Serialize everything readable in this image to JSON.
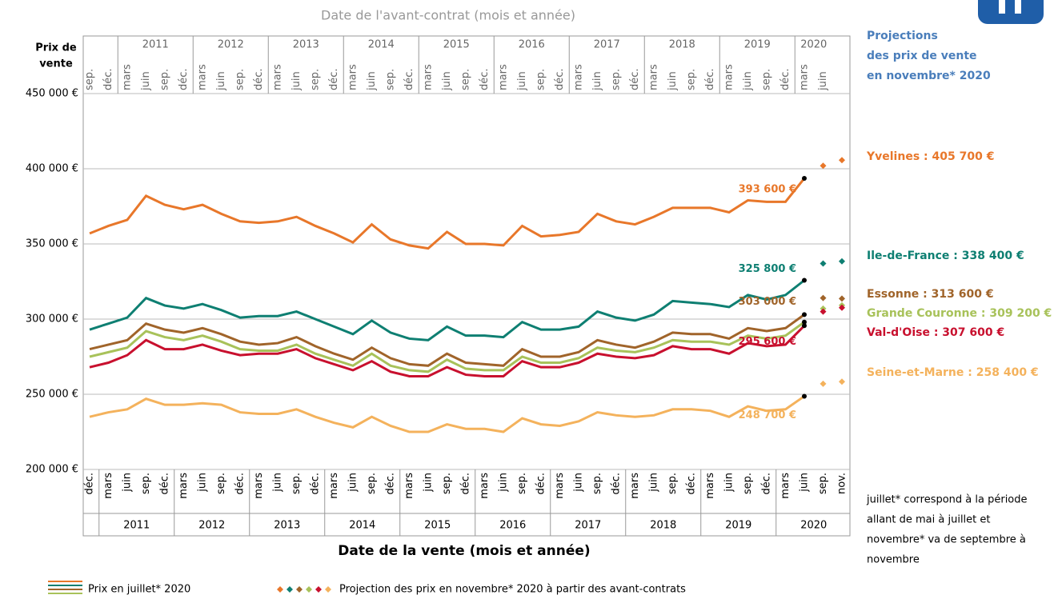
{
  "chart_data": {
    "type": "line",
    "subtitle": "Date de l'avant-contrat (mois et année)",
    "ylabel": [
      "Prix de",
      "vente"
    ],
    "xlabel": "Date de la vente (mois et année)",
    "categories": [
      "déc.",
      "mars",
      "juin",
      "sep.",
      "déc.",
      "mars",
      "juin",
      "sep.",
      "déc.",
      "mars",
      "juin",
      "sep.",
      "déc.",
      "mars",
      "juin",
      "sep.",
      "déc.",
      "mars",
      "juin",
      "sep.",
      "déc.",
      "mars",
      "juin",
      "sep.",
      "déc.",
      "mars",
      "juin",
      "sep.",
      "déc.",
      "mars",
      "juin",
      "sep.",
      "déc.",
      "mars",
      "juin",
      "sep.",
      "déc.",
      "mars",
      "juin",
      "sep.",
      "nov."
    ],
    "years": [
      2011,
      2012,
      2013,
      2014,
      2015,
      2016,
      2017,
      2018,
      2019,
      2020
    ],
    "top_axis": {
      "months": [
        "sep.",
        "déc.",
        "mars",
        "juin",
        "sep.",
        "déc.",
        "mars",
        "juin",
        "sep.",
        "déc.",
        "mars",
        "juin",
        "sep.",
        "déc.",
        "mars",
        "juin",
        "sep.",
        "déc.",
        "mars",
        "juin",
        "sep.",
        "déc.",
        "mars",
        "juin",
        "sep.",
        "déc.",
        "mars",
        "juin",
        "sep.",
        "déc.",
        "mars",
        "juin",
        "sep.",
        "déc.",
        "mars",
        "juin",
        "sep.",
        "déc.",
        "mars",
        "juin"
      ],
      "years": [
        2011,
        2012,
        2013,
        2014,
        2015,
        2016,
        2017,
        2018,
        2019,
        2020
      ]
    },
    "ylim": [
      200000,
      450000
    ],
    "yticks": [
      {
        "value": 200000,
        "label": "200 000 €"
      },
      {
        "value": 250000,
        "label": "250 000 €"
      },
      {
        "value": 300000,
        "label": "300 000 €"
      },
      {
        "value": 350000,
        "label": "350 000 €"
      },
      {
        "value": 400000,
        "label": "400 000 €"
      },
      {
        "value": 450000,
        "label": "450 000 €"
      }
    ],
    "grid": true,
    "projection_title": [
      "Projections",
      "des prix de vente",
      "en novembre* 2020"
    ],
    "series": [
      {
        "label": "Yvelines : 405 700 €",
        "color": "#e8772a",
        "last_label": "393 600 €",
        "values": [
          357000,
          362000,
          366000,
          382000,
          376000,
          373000,
          376000,
          370000,
          365000,
          364000,
          365000,
          368000,
          362000,
          357000,
          351000,
          363000,
          353000,
          349000,
          347000,
          358000,
          350000,
          350000,
          349000,
          362000,
          355000,
          356000,
          358000,
          370000,
          365000,
          363000,
          368000,
          374000,
          374000,
          374000,
          371000,
          379000,
          378000,
          378000,
          393600,
          null,
          null
        ],
        "projection": [
          null,
          null,
          null,
          null,
          null,
          null,
          null,
          null,
          null,
          null,
          null,
          null,
          null,
          null,
          null,
          null,
          null,
          null,
          null,
          null,
          null,
          null,
          null,
          null,
          null,
          null,
          null,
          null,
          null,
          null,
          null,
          null,
          null,
          null,
          null,
          null,
          null,
          null,
          null,
          402000,
          405700
        ]
      },
      {
        "label": "Ile-de-France : 338 400 €",
        "color": "#0e7f72",
        "last_label": "325 800 €",
        "values": [
          293000,
          297000,
          301000,
          314000,
          309000,
          307000,
          310000,
          306000,
          301000,
          302000,
          302000,
          305000,
          300000,
          295000,
          290000,
          299000,
          291000,
          287000,
          286000,
          295000,
          289000,
          289000,
          288000,
          298000,
          293000,
          293000,
          295000,
          305000,
          301000,
          299000,
          303000,
          312000,
          311000,
          310000,
          308000,
          316000,
          313000,
          316000,
          325800,
          null,
          null
        ],
        "projection": [
          null,
          null,
          null,
          null,
          null,
          null,
          null,
          null,
          null,
          null,
          null,
          null,
          null,
          null,
          null,
          null,
          null,
          null,
          null,
          null,
          null,
          null,
          null,
          null,
          null,
          null,
          null,
          null,
          null,
          null,
          null,
          null,
          null,
          null,
          null,
          null,
          null,
          null,
          null,
          337000,
          338400
        ]
      },
      {
        "label": "Essonne : 313 600 €",
        "color": "#a0642a",
        "last_label": "303 000 €",
        "values": [
          280000,
          283000,
          286000,
          297000,
          293000,
          291000,
          294000,
          290000,
          285000,
          283000,
          284000,
          288000,
          282000,
          277000,
          273000,
          281000,
          274000,
          270000,
          269000,
          277000,
          271000,
          270000,
          269000,
          280000,
          275000,
          275000,
          278000,
          286000,
          283000,
          281000,
          285000,
          291000,
          290000,
          290000,
          287000,
          294000,
          292000,
          294000,
          303000,
          null,
          null
        ],
        "projection": [
          null,
          null,
          null,
          null,
          null,
          null,
          null,
          null,
          null,
          null,
          null,
          null,
          null,
          null,
          null,
          null,
          null,
          null,
          null,
          null,
          null,
          null,
          null,
          null,
          null,
          null,
          null,
          null,
          null,
          null,
          null,
          null,
          null,
          null,
          null,
          null,
          null,
          null,
          null,
          314000,
          313600
        ]
      },
      {
        "label": "Grande Couronne : 309 200 €",
        "color": "#a8c25a",
        "values": [
          275000,
          278000,
          281000,
          292000,
          288000,
          286000,
          289000,
          285000,
          280000,
          279000,
          279000,
          283000,
          277000,
          273000,
          269000,
          277000,
          269000,
          266000,
          265000,
          273000,
          267000,
          266000,
          266000,
          275000,
          271000,
          271000,
          274000,
          281000,
          279000,
          278000,
          281000,
          286000,
          285000,
          285000,
          283000,
          289000,
          287000,
          289000,
          298000,
          null,
          null
        ],
        "projection": [
          null,
          null,
          null,
          null,
          null,
          null,
          null,
          null,
          null,
          null,
          null,
          null,
          null,
          null,
          null,
          null,
          null,
          null,
          null,
          null,
          null,
          null,
          null,
          null,
          null,
          null,
          null,
          null,
          null,
          null,
          null,
          null,
          null,
          null,
          null,
          null,
          null,
          null,
          null,
          307000,
          309200
        ]
      },
      {
        "label": "Val-d'Oise : 307 600 €",
        "color": "#c8102e",
        "last_label": "295 600 €",
        "values": [
          268000,
          271000,
          276000,
          286000,
          280000,
          280000,
          283000,
          279000,
          276000,
          277000,
          277000,
          280000,
          274000,
          270000,
          266000,
          272000,
          265000,
          262000,
          262000,
          268000,
          263000,
          262000,
          262000,
          272000,
          268000,
          268000,
          271000,
          277000,
          275000,
          274000,
          276000,
          282000,
          280000,
          280000,
          277000,
          284000,
          282000,
          283000,
          295600,
          null,
          null
        ],
        "projection": [
          null,
          null,
          null,
          null,
          null,
          null,
          null,
          null,
          null,
          null,
          null,
          null,
          null,
          null,
          null,
          null,
          null,
          null,
          null,
          null,
          null,
          null,
          null,
          null,
          null,
          null,
          null,
          null,
          null,
          null,
          null,
          null,
          null,
          null,
          null,
          null,
          null,
          null,
          null,
          305000,
          307600
        ]
      },
      {
        "label": "Seine-et-Marne : 258 400 €",
        "color": "#f4b25c",
        "last_label": "248 700 €",
        "values": [
          235000,
          238000,
          240000,
          247000,
          243000,
          243000,
          244000,
          243000,
          238000,
          237000,
          237000,
          240000,
          235000,
          231000,
          228000,
          235000,
          229000,
          225000,
          225000,
          230000,
          227000,
          227000,
          225000,
          234000,
          230000,
          229000,
          232000,
          238000,
          236000,
          235000,
          236000,
          240000,
          240000,
          239000,
          235000,
          242000,
          239000,
          240000,
          248700,
          null,
          null
        ],
        "projection": [
          null,
          null,
          null,
          null,
          null,
          null,
          null,
          null,
          null,
          null,
          null,
          null,
          null,
          null,
          null,
          null,
          null,
          null,
          null,
          null,
          null,
          null,
          null,
          null,
          null,
          null,
          null,
          null,
          null,
          null,
          null,
          null,
          null,
          null,
          null,
          null,
          null,
          null,
          null,
          257000,
          258400
        ]
      }
    ],
    "footnote": [
      "juillet* correspond à la période",
      "allant de mai à juillet et",
      "novembre* va de septembre à",
      "novembre"
    ],
    "legend": {
      "actual": "Prix en juillet* 2020",
      "projection": "Projection des prix en novembre* 2020 à partir des avant-contrats"
    }
  }
}
